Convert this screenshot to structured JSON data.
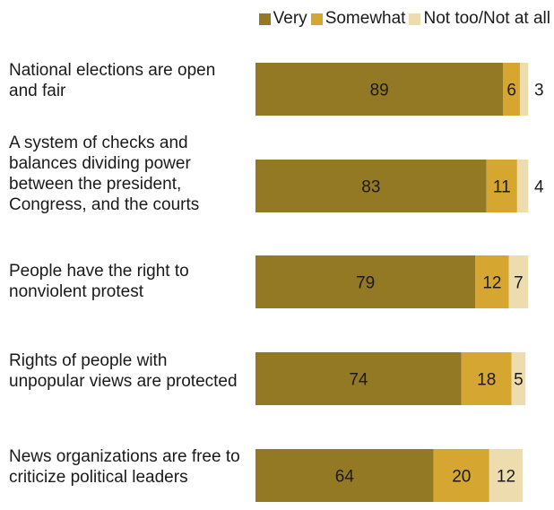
{
  "colors": {
    "very": "#947924",
    "somewhat": "#d5a731",
    "not": "#ecdcae"
  },
  "legend": {
    "very": "Very",
    "somewhat": "Somewhat",
    "not": "Not too/Not at all"
  },
  "chart_data": {
    "type": "bar",
    "orientation": "horizontal",
    "stacked": true,
    "categories": [
      "National elections are open and fair",
      "A system of checks and balances dividing power between the president, Congress, and the courts",
      "People have the right to nonviolent protest",
      "Rights of people with unpopular views are protected",
      "News organizations are free to criticize political leaders"
    ],
    "series": [
      {
        "name": "Very",
        "values": [
          89,
          83,
          79,
          74,
          64
        ]
      },
      {
        "name": "Somewhat",
        "values": [
          6,
          11,
          12,
          18,
          20
        ]
      },
      {
        "name": "Not too/Not at all",
        "values": [
          3,
          4,
          7,
          5,
          12
        ]
      }
    ],
    "xlim": [
      0,
      100
    ],
    "legend_position": "top-right",
    "grid": false
  }
}
